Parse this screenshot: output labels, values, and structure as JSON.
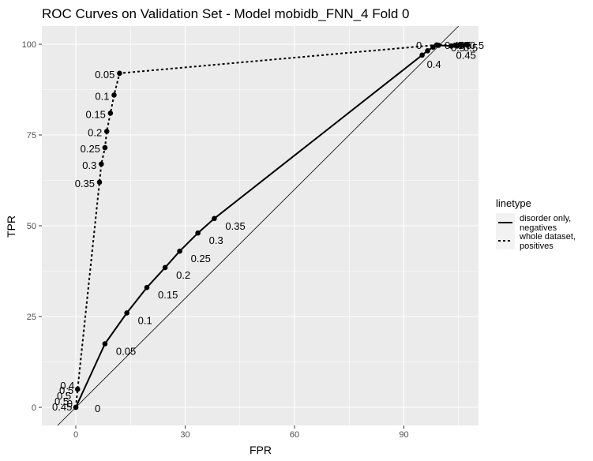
{
  "chart_data": {
    "type": "line",
    "title": "ROC Curves on Validation Set - Model mobidb_FNN_4 Fold 0",
    "xlabel": "FPR",
    "ylabel": "TPR",
    "xlim": [
      -10,
      111
    ],
    "ylim": [
      -5,
      104
    ],
    "x_ticks": [
      0,
      30,
      60,
      90
    ],
    "y_ticks": [
      0,
      25,
      50,
      75,
      100
    ],
    "grid": true,
    "legend": {
      "title": "linetype",
      "position": "right",
      "entries": [
        {
          "label_lines": [
            "disorder only,",
            "negatives"
          ],
          "dash": "solid"
        },
        {
          "label_lines": [
            "whole dataset,",
            "positives"
          ],
          "dash": "dotted"
        }
      ]
    },
    "reference_line": {
      "slope": 1,
      "intercept": 0
    },
    "series": [
      {
        "key": "disorder_only_negatives",
        "dash": "solid",
        "points": [
          {
            "x": 0.0,
            "y": 0.0,
            "label": "0"
          },
          {
            "x": 8.0,
            "y": 17.5,
            "label": "0.05"
          },
          {
            "x": 14.0,
            "y": 26.0,
            "label": "0.1"
          },
          {
            "x": 19.5,
            "y": 33.0,
            "label": "0.15"
          },
          {
            "x": 24.5,
            "y": 38.5,
            "label": "0.2"
          },
          {
            "x": 28.5,
            "y": 43.0,
            "label": "0.25"
          },
          {
            "x": 33.5,
            "y": 48.0,
            "label": "0.3"
          },
          {
            "x": 38.0,
            "y": 52.0,
            "label": "0.35"
          },
          {
            "x": 95.0,
            "y": 97.0,
            "label": "0.4"
          },
          {
            "x": 96.5,
            "y": 98.2,
            "label": ""
          },
          {
            "x": 98.0,
            "y": 99.2,
            "label": ""
          },
          {
            "x": 99.5,
            "y": 99.7,
            "label": ""
          },
          {
            "x": 103.0,
            "y": 99.5,
            "label": "0.45"
          },
          {
            "x": 104.5,
            "y": 99.6,
            "label": ""
          },
          {
            "x": 106.0,
            "y": 99.7,
            "label": ""
          },
          {
            "x": 107.5,
            "y": 99.8,
            "label": ""
          }
        ]
      },
      {
        "key": "whole_dataset_positives",
        "dash": "dotted",
        "points": [
          {
            "x": 0.0,
            "y": 0.0,
            "label": "0"
          },
          {
            "x": 0.5,
            "y": 5.0,
            "label": "0.4"
          },
          {
            "x": 6.5,
            "y": 62.0,
            "label": "0.35"
          },
          {
            "x": 7.0,
            "y": 67.0,
            "label": "0.3"
          },
          {
            "x": 8.0,
            "y": 71.5,
            "label": "0.25"
          },
          {
            "x": 8.5,
            "y": 76.0,
            "label": "0.2"
          },
          {
            "x": 9.5,
            "y": 81.0,
            "label": "0.15"
          },
          {
            "x": 10.5,
            "y": 86.0,
            "label": "0.1"
          },
          {
            "x": 12.0,
            "y": 92.0,
            "label": "0.05"
          },
          {
            "x": 99.0,
            "y": 99.8,
            "label": "0"
          },
          {
            "x": 104.0,
            "y": 99.7,
            "label": ""
          },
          {
            "x": 105.5,
            "y": 99.8,
            "label": ""
          },
          {
            "x": 107.0,
            "y": 99.9,
            "label": ""
          }
        ]
      }
    ],
    "cluster_labels": [
      "0.45",
      "0.5",
      "0.5",
      "0.5",
      "0.5"
    ]
  }
}
